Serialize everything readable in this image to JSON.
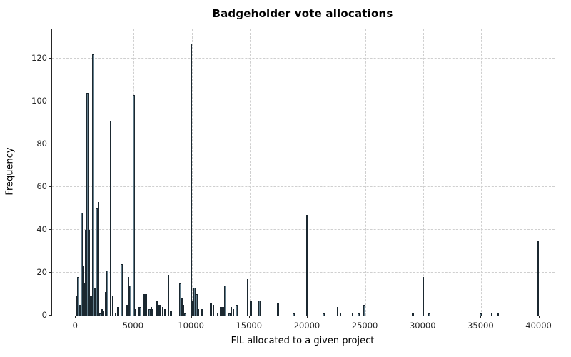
{
  "title": "Badgeholder vote allocations",
  "chart_data": {
    "type": "bar",
    "title": "Badgeholder vote allocations",
    "xlabel": "FIL allocated to a given project",
    "ylabel": "Frequency",
    "xlim": [
      -2050,
      41320
    ],
    "ylim": [
      0,
      133.7
    ],
    "xticks": [
      0,
      5000,
      10000,
      15000,
      20000,
      25000,
      30000,
      35000,
      40000
    ],
    "yticks": [
      0,
      20,
      40,
      60,
      80,
      100,
      120
    ],
    "grid": "dashed-both-axes",
    "legend": "none",
    "bar_fill_color": "#637e8c",
    "bar_edge_color": "#1b2830",
    "bar_width_fil": 145,
    "bars": [
      [
        30,
        9
      ],
      [
        200,
        18
      ],
      [
        350,
        5
      ],
      [
        500,
        48
      ],
      [
        650,
        23
      ],
      [
        800,
        15
      ],
      [
        870,
        40
      ],
      [
        1000,
        104
      ],
      [
        1150,
        40
      ],
      [
        1300,
        9
      ],
      [
        1500,
        122
      ],
      [
        1650,
        13
      ],
      [
        1800,
        50
      ],
      [
        1950,
        53
      ],
      [
        2100,
        1
      ],
      [
        2250,
        3
      ],
      [
        2400,
        2
      ],
      [
        2570,
        11
      ],
      [
        2720,
        21
      ],
      [
        3000,
        91
      ],
      [
        3200,
        9
      ],
      [
        3450,
        1
      ],
      [
        3650,
        4
      ],
      [
        3950,
        24
      ],
      [
        4400,
        5
      ],
      [
        4550,
        18
      ],
      [
        4700,
        14
      ],
      [
        5000,
        103
      ],
      [
        5160,
        3
      ],
      [
        5400,
        4
      ],
      [
        5550,
        4
      ],
      [
        5900,
        10
      ],
      [
        6050,
        10
      ],
      [
        6350,
        3
      ],
      [
        6500,
        4
      ],
      [
        6650,
        3
      ],
      [
        7000,
        7
      ],
      [
        7180,
        5
      ],
      [
        7330,
        5
      ],
      [
        7480,
        4
      ],
      [
        7700,
        3
      ],
      [
        8000,
        19
      ],
      [
        8200,
        2
      ],
      [
        9000,
        15
      ],
      [
        9150,
        8
      ],
      [
        9300,
        5
      ],
      [
        9450,
        1
      ],
      [
        9950,
        127
      ],
      [
        10100,
        7
      ],
      [
        10250,
        13
      ],
      [
        10420,
        10
      ],
      [
        10580,
        3
      ],
      [
        10900,
        3
      ],
      [
        11650,
        6
      ],
      [
        11870,
        5
      ],
      [
        12250,
        1
      ],
      [
        12520,
        4
      ],
      [
        12700,
        4
      ],
      [
        12900,
        14
      ],
      [
        13250,
        1
      ],
      [
        13430,
        4
      ],
      [
        13600,
        3
      ],
      [
        13870,
        5
      ],
      [
        14850,
        17
      ],
      [
        15100,
        7
      ],
      [
        15850,
        7
      ],
      [
        17450,
        6
      ],
      [
        18800,
        1
      ],
      [
        19950,
        47
      ],
      [
        21400,
        1
      ],
      [
        22600,
        4
      ],
      [
        22850,
        1
      ],
      [
        23900,
        1
      ],
      [
        24400,
        1
      ],
      [
        24900,
        5
      ],
      [
        29100,
        1
      ],
      [
        30000,
        18
      ],
      [
        30500,
        1
      ],
      [
        34950,
        1
      ],
      [
        35900,
        1
      ],
      [
        36450,
        1
      ],
      [
        39900,
        35
      ]
    ]
  }
}
